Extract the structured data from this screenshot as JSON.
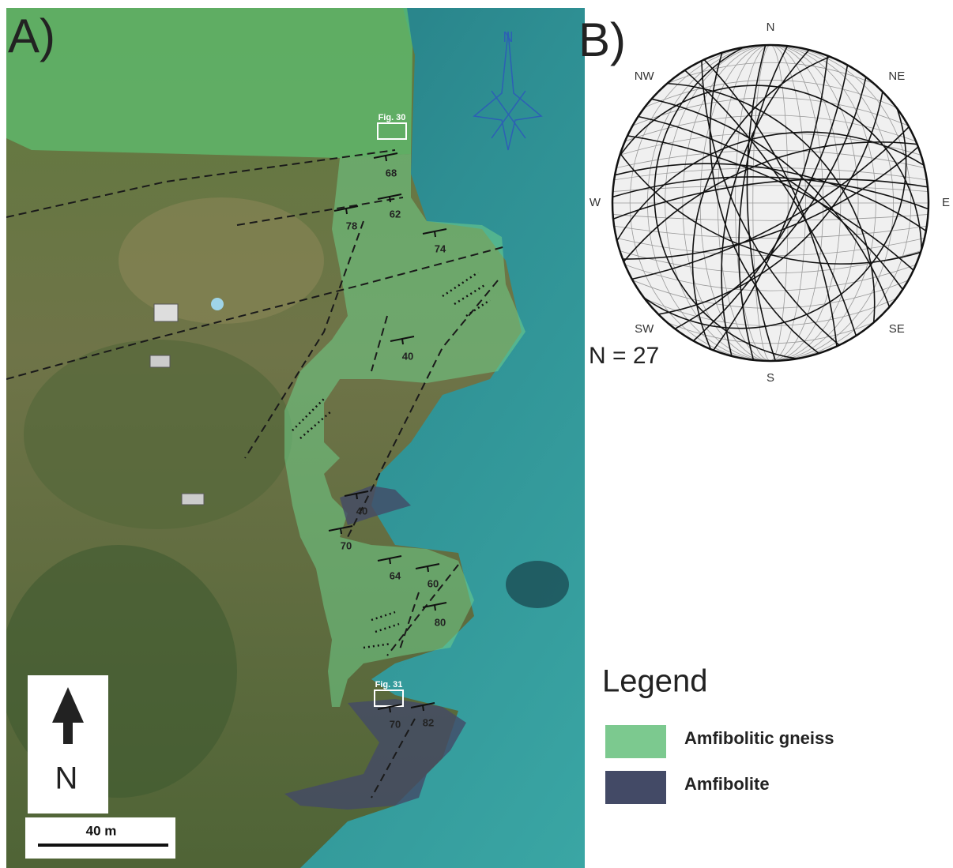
{
  "panel_a": {
    "label": "A)",
    "north_star": "N",
    "figure_refs": [
      "Fig. 30",
      "Fig. 31"
    ],
    "dip_labels": [
      "68",
      "62",
      "78",
      "74",
      "40",
      "40",
      "70",
      "64",
      "60",
      "80",
      "70",
      "82"
    ],
    "north_arrow": "N",
    "scale_bar": "40 m"
  },
  "panel_b": {
    "label": "B)",
    "directions": [
      "N",
      "NE",
      "E",
      "SE",
      "S",
      "SW",
      "W",
      "NW"
    ],
    "count": "N = 27"
  },
  "legend": {
    "title": "Legend",
    "items": [
      {
        "label": "Amfibolitic gneiss",
        "color": "#7cc98f"
      },
      {
        "label": "Amfibolite",
        "color": "#434a66"
      }
    ]
  }
}
